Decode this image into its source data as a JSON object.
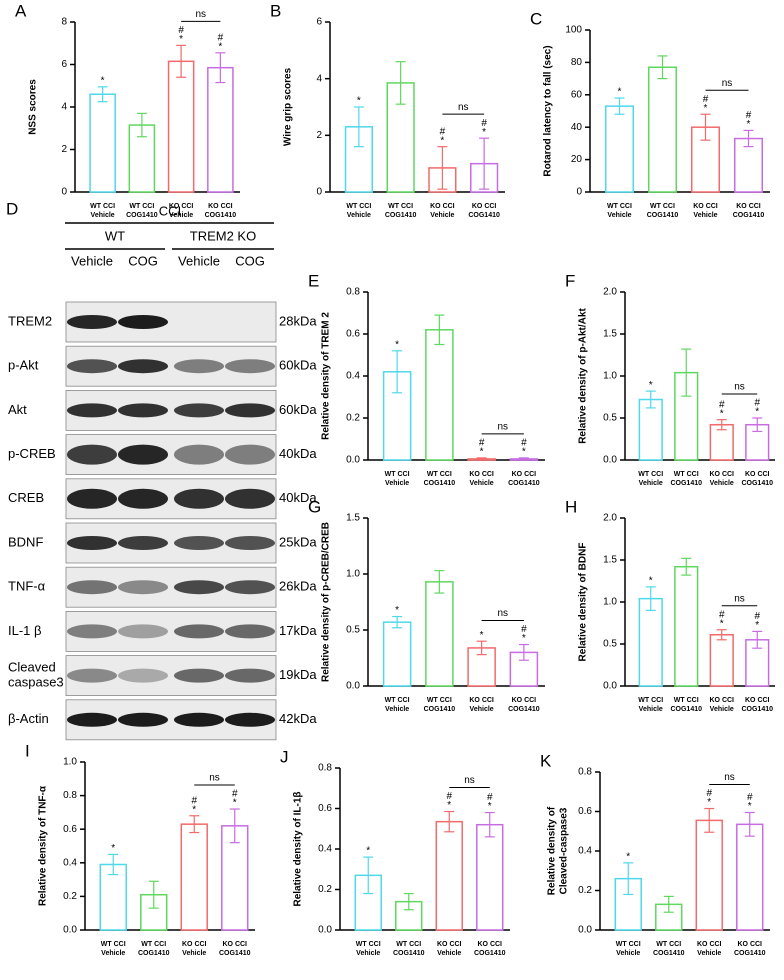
{
  "blot": {
    "panel": "D",
    "group": "CCI",
    "genotypes": [
      "WT",
      "TREM2 KO"
    ],
    "lanes": [
      "Vehicle",
      "COG",
      "Vehicle",
      "COG"
    ],
    "rows": [
      {
        "protein": [
          "TREM2"
        ],
        "size": "28kDa"
      },
      {
        "protein": [
          "p-Akt"
        ],
        "size": "60kDa"
      },
      {
        "protein": [
          "Akt"
        ],
        "size": "60kDa"
      },
      {
        "protein": [
          "p-CREB"
        ],
        "size": "40kDa"
      },
      {
        "protein": [
          "CREB"
        ],
        "size": "40kDa"
      },
      {
        "protein": [
          "BDNF"
        ],
        "size": "25kDa"
      },
      {
        "protein": [
          "TNF-α"
        ],
        "size": "26kDa"
      },
      {
        "protein": [
          "IL-1 β"
        ],
        "size": "17kDa"
      },
      {
        "protein": [
          "Cleaved",
          "caspase3"
        ],
        "size": "19kDa"
      },
      {
        "protein": [
          "β-Actin"
        ],
        "size": "42kDa"
      }
    ]
  },
  "chart_data": [
    {
      "type": "bar",
      "panel": "A",
      "ylabel": [
        "NSS scores"
      ],
      "categories": [
        [
          "WT CCI",
          "Vehicle"
        ],
        [
          "WT CCI",
          "COG1410"
        ],
        [
          "KO CCI",
          "Vehicle"
        ],
        [
          "KO CCI",
          "COG1410"
        ]
      ],
      "values": [
        4.6,
        3.15,
        6.15,
        5.85
      ],
      "errors": [
        0.35,
        0.55,
        0.75,
        0.7
      ],
      "colors": [
        "#4fd8ea",
        "#5fd85f",
        "#f26a6a",
        "#c86ce2"
      ],
      "ylim": [
        0,
        8
      ],
      "yticks": [
        0,
        2,
        4,
        6,
        8
      ],
      "bar_marks": [
        [
          "*"
        ],
        [],
        [
          "#",
          "*"
        ],
        [
          "#",
          "*"
        ]
      ],
      "bracket": {
        "text": "ns",
        "from": 2,
        "to": 3
      }
    },
    {
      "type": "bar",
      "panel": "B",
      "ylabel": [
        "Wire grip scores"
      ],
      "categories": [
        [
          "WT CCI",
          "Vehicle"
        ],
        [
          "WT CCI",
          "COG1410"
        ],
        [
          "KO CCI",
          "Vehicle"
        ],
        [
          "KO CCI",
          "COG1410"
        ]
      ],
      "values": [
        2.3,
        3.85,
        0.85,
        1.0
      ],
      "errors": [
        0.7,
        0.75,
        0.75,
        0.9
      ],
      "colors": [
        "#4fd8ea",
        "#5fd85f",
        "#f26a6a",
        "#c86ce2"
      ],
      "ylim": [
        0,
        6
      ],
      "yticks": [
        0,
        2,
        4,
        6
      ],
      "bar_marks": [
        [
          "*"
        ],
        [],
        [
          "#",
          "*"
        ],
        [
          "#",
          "*"
        ]
      ],
      "bracket": {
        "text": "ns",
        "from": 2,
        "to": 3
      }
    },
    {
      "type": "bar",
      "panel": "C",
      "ylabel": [
        "Rotarod latency to fall (sec)"
      ],
      "categories": [
        [
          "WT CCI",
          "Vehicle"
        ],
        [
          "WT CCI",
          "COG1410"
        ],
        [
          "KO CCI",
          "Vehicle"
        ],
        [
          "KO CCI",
          "COG1410"
        ]
      ],
      "values": [
        53,
        77,
        40,
        33
      ],
      "errors": [
        5,
        7,
        8,
        5
      ],
      "colors": [
        "#4fd8ea",
        "#5fd85f",
        "#f26a6a",
        "#c86ce2"
      ],
      "ylim": [
        0,
        100
      ],
      "yticks": [
        0,
        20,
        40,
        60,
        80,
        100
      ],
      "bar_marks": [
        [
          "*"
        ],
        [],
        [
          "#",
          "*"
        ],
        [
          "#",
          "*"
        ]
      ],
      "bracket": {
        "text": "ns",
        "from": 2,
        "to": 3
      }
    },
    {
      "type": "bar",
      "panel": "E",
      "ylabel": [
        "Relative density of TREM 2"
      ],
      "categories": [
        [
          "WT CCI",
          "Vehicle"
        ],
        [
          "WT CCI",
          "COG1410"
        ],
        [
          "KO CCI",
          "Vehicle"
        ],
        [
          "KO CCI",
          "COG1410"
        ]
      ],
      "values": [
        0.42,
        0.62,
        0.005,
        0.005
      ],
      "errors": [
        0.1,
        0.07,
        0.005,
        0.005
      ],
      "colors": [
        "#4fd8ea",
        "#5fd85f",
        "#f26a6a",
        "#c86ce2"
      ],
      "ylim": [
        0,
        0.8
      ],
      "yticks": [
        {
          "value": 0,
          "label": "0.0"
        },
        0.2,
        0.4,
        0.6,
        0.8
      ],
      "bar_marks": [
        [
          "*"
        ],
        [],
        [
          "#",
          "*"
        ],
        [
          "#",
          "*"
        ]
      ],
      "bracket": {
        "text": "ns",
        "from": 2,
        "to": 3
      }
    },
    {
      "type": "bar",
      "panel": "F",
      "ylabel": [
        "Relative density of p-Akt/Akt"
      ],
      "categories": [
        [
          "WT CCI",
          "Vehicle"
        ],
        [
          "WT CCI",
          "COG1410"
        ],
        [
          "KO CCI",
          "Vehicle"
        ],
        [
          "KO CCI",
          "COG1410"
        ]
      ],
      "values": [
        0.72,
        1.04,
        0.42,
        0.42
      ],
      "errors": [
        0.1,
        0.28,
        0.06,
        0.08
      ],
      "colors": [
        "#4fd8ea",
        "#5fd85f",
        "#f26a6a",
        "#c86ce2"
      ],
      "ylim": [
        0,
        2
      ],
      "yticks": [
        {
          "value": 0,
          "label": "0.0"
        },
        0.5,
        {
          "value": 1,
          "label": "1.0"
        },
        1.5,
        {
          "value": 2,
          "label": "2.0"
        }
      ],
      "bar_marks": [
        [
          "*"
        ],
        [],
        [
          "#",
          "*"
        ],
        [
          "#",
          "*"
        ]
      ],
      "bracket": {
        "text": "ns",
        "from": 2,
        "to": 3
      }
    },
    {
      "type": "bar",
      "panel": "G",
      "ylabel": [
        "Relative density of p-CREB/CREB"
      ],
      "categories": [
        [
          "WT CCI",
          "Vehicle"
        ],
        [
          "WT CCI",
          "COG1410"
        ],
        [
          "KO CCI",
          "Vehicle"
        ],
        [
          "KO CCI",
          "COG1410"
        ]
      ],
      "values": [
        0.57,
        0.93,
        0.34,
        0.3
      ],
      "errors": [
        0.05,
        0.1,
        0.06,
        0.07
      ],
      "colors": [
        "#4fd8ea",
        "#5fd85f",
        "#f26a6a",
        "#c86ce2"
      ],
      "ylim": [
        0,
        1.5
      ],
      "yticks": [
        {
          "value": 0,
          "label": "0.0"
        },
        0.5,
        {
          "value": 1,
          "label": "1.0"
        },
        1.5
      ],
      "bar_marks": [
        [
          "*"
        ],
        [],
        [
          "*"
        ],
        [
          "#",
          "*"
        ]
      ],
      "bracket": {
        "text": "ns",
        "from": 2,
        "to": 3
      }
    },
    {
      "type": "bar",
      "panel": "H",
      "ylabel": [
        "Relative density of BDNF"
      ],
      "categories": [
        [
          "WT CCI",
          "Vehicle"
        ],
        [
          "WT CCI",
          "COG1410"
        ],
        [
          "KO CCI",
          "Vehicle"
        ],
        [
          "KO CCI",
          "COG1410"
        ]
      ],
      "values": [
        1.04,
        1.42,
        0.61,
        0.55
      ],
      "errors": [
        0.14,
        0.1,
        0.06,
        0.1
      ],
      "colors": [
        "#4fd8ea",
        "#5fd85f",
        "#f26a6a",
        "#c86ce2"
      ],
      "ylim": [
        0,
        2
      ],
      "yticks": [
        {
          "value": 0,
          "label": "0.0"
        },
        0.5,
        {
          "value": 1,
          "label": "1.0"
        },
        1.5,
        {
          "value": 2,
          "label": "2.0"
        }
      ],
      "bar_marks": [
        [
          "*"
        ],
        [],
        [
          "#",
          "*"
        ],
        [
          "#",
          "*"
        ]
      ],
      "bracket": {
        "text": "ns",
        "from": 2,
        "to": 3
      }
    },
    {
      "type": "bar",
      "panel": "I",
      "ylabel": [
        "Relative density of TNF-α"
      ],
      "categories": [
        [
          "WT CCI",
          "Vehicle"
        ],
        [
          "WT CCI",
          "COG1410"
        ],
        [
          "KO CCI",
          "Vehicle"
        ],
        [
          "KO CCI",
          "COG1410"
        ]
      ],
      "values": [
        0.39,
        0.21,
        0.63,
        0.62
      ],
      "errors": [
        0.06,
        0.08,
        0.05,
        0.1
      ],
      "colors": [
        "#4fd8ea",
        "#5fd85f",
        "#f26a6a",
        "#c86ce2"
      ],
      "ylim": [
        0,
        1
      ],
      "yticks": [
        {
          "value": 0,
          "label": "0.0"
        },
        0.2,
        0.4,
        0.6,
        0.8,
        {
          "value": 1,
          "label": "1.0"
        }
      ],
      "bar_marks": [
        [
          "*"
        ],
        [],
        [
          "#",
          "*"
        ],
        [
          "#",
          "*"
        ]
      ],
      "bracket": {
        "text": "ns",
        "from": 2,
        "to": 3
      }
    },
    {
      "type": "bar",
      "panel": "J",
      "ylabel": [
        "Relative density of IL-1β"
      ],
      "categories": [
        [
          "WT CCI",
          "Vehicle"
        ],
        [
          "WT CCI",
          "COG1410"
        ],
        [
          "KO CCI",
          "Vehicle"
        ],
        [
          "KO CCI",
          "COG1410"
        ]
      ],
      "values": [
        0.27,
        0.14,
        0.535,
        0.52
      ],
      "errors": [
        0.09,
        0.04,
        0.05,
        0.06
      ],
      "colors": [
        "#4fd8ea",
        "#5fd85f",
        "#f26a6a",
        "#c86ce2"
      ],
      "ylim": [
        0,
        0.8
      ],
      "yticks": [
        {
          "value": 0,
          "label": "0.0"
        },
        0.2,
        0.4,
        0.6,
        0.8
      ],
      "bar_marks": [
        [
          "*"
        ],
        [],
        [
          "#",
          "*"
        ],
        [
          "#",
          "*"
        ]
      ],
      "bracket": {
        "text": "ns",
        "from": 2,
        "to": 3
      }
    },
    {
      "type": "bar",
      "panel": "K",
      "ylabel": [
        "Relative density of",
        "Cleaved-caspase3"
      ],
      "categories": [
        [
          "WT CCI",
          "Vehicle"
        ],
        [
          "WT CCI",
          "COG1410"
        ],
        [
          "KO CCI",
          "Vehicle"
        ],
        [
          "KO CCI",
          "COG1410"
        ]
      ],
      "values": [
        0.26,
        0.13,
        0.555,
        0.535
      ],
      "errors": [
        0.08,
        0.04,
        0.06,
        0.06
      ],
      "colors": [
        "#4fd8ea",
        "#5fd85f",
        "#f26a6a",
        "#c86ce2"
      ],
      "ylim": [
        0,
        0.8
      ],
      "yticks": [
        {
          "value": 0,
          "label": "0.0"
        },
        0.2,
        0.4,
        0.6,
        0.8
      ],
      "bar_marks": [
        [
          "*"
        ],
        [],
        [
          "#",
          "*"
        ],
        [
          "#",
          "*"
        ]
      ],
      "bracket": {
        "text": "ns",
        "from": 2,
        "to": 3
      }
    }
  ]
}
